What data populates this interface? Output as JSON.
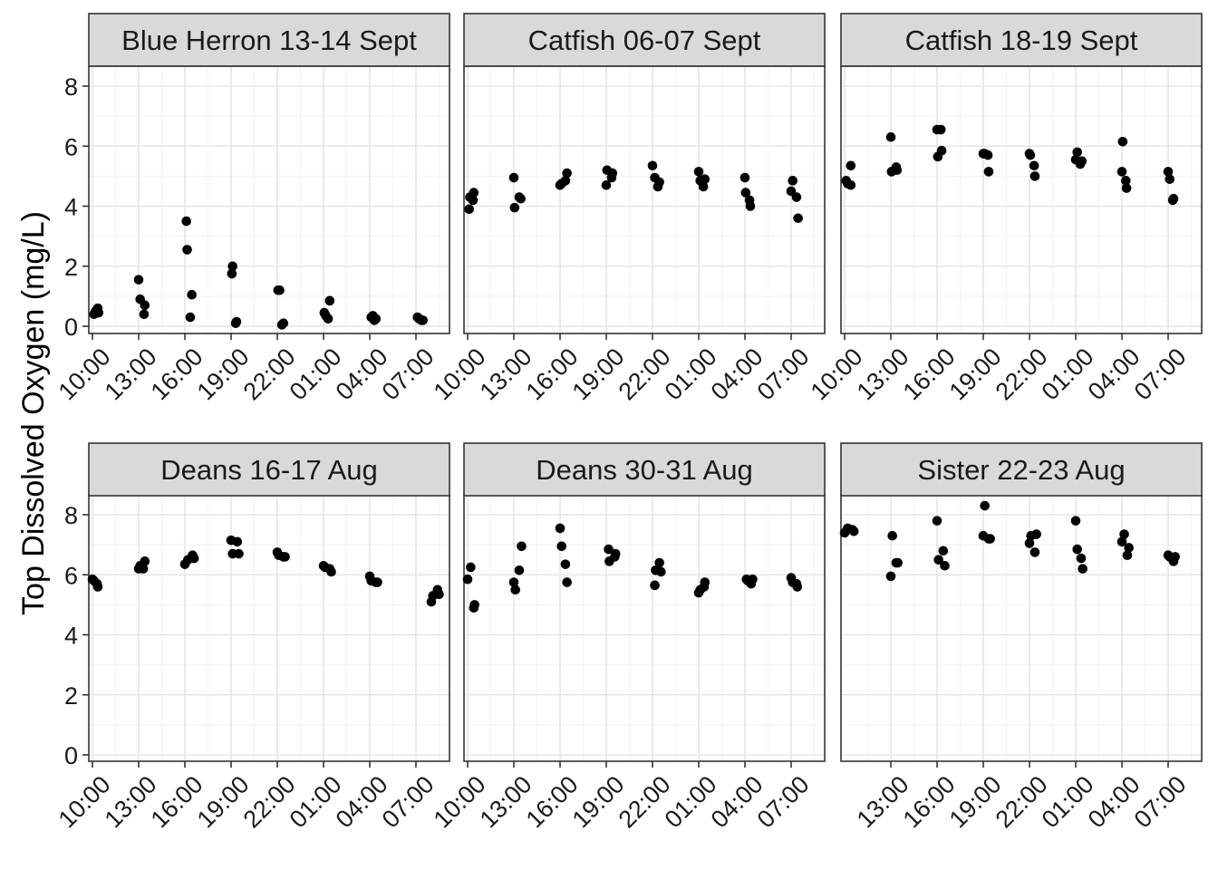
{
  "chart_data": {
    "type": "scatter",
    "title": "",
    "xlabel": "",
    "ylabel": "Top Dissolved Oxygen (mg/L)",
    "ylim": [
      0,
      8
    ],
    "yticks": [
      "0",
      "2",
      "4",
      "6",
      "8"
    ],
    "xtick_labels": [
      "10:00",
      "13:00",
      "16:00",
      "19:00",
      "22:00",
      "01:00",
      "04:00",
      "07:00"
    ],
    "x_units": "hours since 10:00",
    "grid": true,
    "point_color": "#000000",
    "panels": [
      {
        "title": "Blue Herron 13-14 Sept",
        "x_ticks": [
          "10:00",
          "13:00",
          "16:00",
          "19:00",
          "22:00",
          "01:00",
          "04:00",
          "07:00"
        ],
        "points": [
          [
            0.1,
            0.4
          ],
          [
            0.2,
            0.5
          ],
          [
            0.35,
            0.6
          ],
          [
            0.4,
            0.45
          ],
          [
            3.0,
            1.55
          ],
          [
            3.1,
            0.9
          ],
          [
            3.35,
            0.4
          ],
          [
            3.4,
            0.7
          ],
          [
            6.1,
            3.5
          ],
          [
            6.15,
            2.55
          ],
          [
            6.35,
            0.3
          ],
          [
            6.45,
            1.05
          ],
          [
            9.05,
            1.75
          ],
          [
            9.1,
            2.0
          ],
          [
            9.3,
            0.1
          ],
          [
            9.35,
            0.15
          ],
          [
            12.05,
            1.2
          ],
          [
            12.15,
            1.2
          ],
          [
            12.3,
            0.05
          ],
          [
            12.4,
            0.1
          ],
          [
            15.05,
            0.45
          ],
          [
            15.15,
            0.35
          ],
          [
            15.3,
            0.25
          ],
          [
            15.4,
            0.85
          ],
          [
            18.1,
            0.3
          ],
          [
            18.2,
            0.35
          ],
          [
            18.3,
            0.2
          ],
          [
            18.4,
            0.25
          ],
          [
            21.1,
            0.3
          ],
          [
            21.2,
            0.25
          ],
          [
            21.35,
            0.2
          ],
          [
            21.45,
            0.2
          ]
        ]
      },
      {
        "title": "Catfish 06-07 Sept",
        "x_ticks": [
          "10:00",
          "13:00",
          "16:00",
          "19:00",
          "22:00",
          "01:00",
          "04:00",
          "07:00"
        ],
        "points": [
          [
            0.1,
            3.9
          ],
          [
            0.15,
            4.3
          ],
          [
            0.35,
            4.2
          ],
          [
            0.4,
            4.45
          ],
          [
            3.0,
            4.95
          ],
          [
            3.05,
            3.95
          ],
          [
            3.35,
            4.3
          ],
          [
            3.45,
            4.25
          ],
          [
            6.0,
            4.7
          ],
          [
            6.1,
            4.75
          ],
          [
            6.35,
            4.85
          ],
          [
            6.45,
            5.1
          ],
          [
            9.0,
            4.7
          ],
          [
            9.05,
            5.2
          ],
          [
            9.35,
            4.95
          ],
          [
            9.4,
            5.1
          ],
          [
            12.0,
            5.35
          ],
          [
            12.15,
            4.95
          ],
          [
            12.35,
            4.65
          ],
          [
            12.45,
            4.8
          ],
          [
            15.0,
            5.15
          ],
          [
            15.1,
            4.85
          ],
          [
            15.3,
            4.65
          ],
          [
            15.4,
            4.9
          ],
          [
            18.0,
            4.95
          ],
          [
            18.05,
            4.45
          ],
          [
            18.35,
            4.0
          ],
          [
            18.3,
            4.2
          ],
          [
            21.0,
            4.5
          ],
          [
            21.1,
            4.85
          ],
          [
            21.35,
            4.3
          ],
          [
            21.45,
            3.6
          ]
        ]
      },
      {
        "title": "Catfish 18-19 Sept",
        "x_ticks": [
          "10:00",
          "13:00",
          "16:00",
          "19:00",
          "22:00",
          "01:00",
          "04:00",
          "07:00"
        ],
        "points": [
          [
            0.1,
            4.85
          ],
          [
            0.2,
            4.75
          ],
          [
            0.4,
            4.7
          ],
          [
            0.4,
            5.35
          ],
          [
            3.0,
            6.3
          ],
          [
            3.05,
            5.15
          ],
          [
            3.35,
            5.3
          ],
          [
            3.4,
            5.2
          ],
          [
            6.0,
            6.55
          ],
          [
            6.05,
            5.65
          ],
          [
            6.25,
            6.55
          ],
          [
            6.3,
            5.85
          ],
          [
            9.0,
            5.75
          ],
          [
            9.1,
            5.75
          ],
          [
            9.3,
            5.7
          ],
          [
            9.35,
            5.15
          ],
          [
            12.0,
            5.75
          ],
          [
            12.05,
            5.7
          ],
          [
            12.3,
            5.35
          ],
          [
            12.35,
            5.0
          ],
          [
            15.0,
            5.55
          ],
          [
            15.1,
            5.8
          ],
          [
            15.3,
            5.4
          ],
          [
            15.4,
            5.5
          ],
          [
            18.0,
            5.15
          ],
          [
            18.05,
            6.15
          ],
          [
            18.25,
            4.85
          ],
          [
            18.3,
            4.6
          ],
          [
            21.0,
            5.15
          ],
          [
            21.1,
            4.9
          ],
          [
            21.35,
            4.25
          ],
          [
            21.3,
            4.2
          ]
        ]
      },
      {
        "title": "Deans 16-17 Aug",
        "x_ticks": [
          "10:00",
          "13:00",
          "16:00",
          "19:00",
          "22:00",
          "01:00",
          "04:00",
          "07:00"
        ],
        "points": [
          [
            0.0,
            5.85
          ],
          [
            0.1,
            5.8
          ],
          [
            0.3,
            5.7
          ],
          [
            0.35,
            5.6
          ],
          [
            3.0,
            6.2
          ],
          [
            3.1,
            6.3
          ],
          [
            3.4,
            6.45
          ],
          [
            3.3,
            6.2
          ],
          [
            6.0,
            6.35
          ],
          [
            6.2,
            6.5
          ],
          [
            6.5,
            6.65
          ],
          [
            6.6,
            6.55
          ],
          [
            9.0,
            7.15
          ],
          [
            9.1,
            6.7
          ],
          [
            9.4,
            7.1
          ],
          [
            9.5,
            6.7
          ],
          [
            12.0,
            6.75
          ],
          [
            12.1,
            6.65
          ],
          [
            12.4,
            6.6
          ],
          [
            12.5,
            6.6
          ],
          [
            15.0,
            6.3
          ],
          [
            15.1,
            6.25
          ],
          [
            15.4,
            6.2
          ],
          [
            15.5,
            6.1
          ],
          [
            18.0,
            5.95
          ],
          [
            18.1,
            5.8
          ],
          [
            18.4,
            5.75
          ],
          [
            18.5,
            5.75
          ],
          [
            22.0,
            5.1
          ],
          [
            22.1,
            5.3
          ],
          [
            22.4,
            5.5
          ],
          [
            22.5,
            5.35
          ]
        ]
      },
      {
        "title": "Deans 30-31 Aug",
        "x_ticks": [
          "10:00",
          "13:00",
          "16:00",
          "19:00",
          "22:00",
          "01:00",
          "04:00",
          "07:00"
        ],
        "points": [
          [
            0.0,
            5.85
          ],
          [
            0.2,
            6.25
          ],
          [
            0.4,
            4.9
          ],
          [
            0.45,
            5.0
          ],
          [
            3.0,
            5.75
          ],
          [
            3.1,
            5.5
          ],
          [
            3.35,
            6.15
          ],
          [
            3.5,
            6.95
          ],
          [
            6.0,
            7.55
          ],
          [
            6.1,
            6.95
          ],
          [
            6.35,
            6.35
          ],
          [
            6.45,
            5.75
          ],
          [
            9.15,
            6.85
          ],
          [
            9.2,
            6.45
          ],
          [
            9.55,
            6.6
          ],
          [
            9.6,
            6.7
          ],
          [
            12.15,
            5.65
          ],
          [
            12.2,
            6.15
          ],
          [
            12.45,
            6.4
          ],
          [
            12.55,
            6.1
          ],
          [
            15.0,
            5.4
          ],
          [
            15.1,
            5.5
          ],
          [
            15.35,
            5.6
          ],
          [
            15.4,
            5.75
          ],
          [
            18.1,
            5.85
          ],
          [
            18.2,
            5.8
          ],
          [
            18.4,
            5.7
          ],
          [
            18.5,
            5.85
          ],
          [
            21.0,
            5.9
          ],
          [
            21.1,
            5.75
          ],
          [
            21.35,
            5.7
          ],
          [
            21.4,
            5.6
          ]
        ]
      },
      {
        "title": "Sister 22-23 Aug",
        "x_ticks": [
          "13:00",
          "16:00",
          "19:00",
          "22:00",
          "01:00",
          "04:00",
          "07:00"
        ],
        "points": [
          [
            0.0,
            7.4
          ],
          [
            0.2,
            7.55
          ],
          [
            0.5,
            7.5
          ],
          [
            0.6,
            7.45
          ],
          [
            3.0,
            5.95
          ],
          [
            3.1,
            7.3
          ],
          [
            3.35,
            6.4
          ],
          [
            3.45,
            6.4
          ],
          [
            6.0,
            7.8
          ],
          [
            6.1,
            6.5
          ],
          [
            6.4,
            6.8
          ],
          [
            6.5,
            6.3
          ],
          [
            9.0,
            7.3
          ],
          [
            9.1,
            8.3
          ],
          [
            9.35,
            7.2
          ],
          [
            9.45,
            7.2
          ],
          [
            12.0,
            7.05
          ],
          [
            12.1,
            7.3
          ],
          [
            12.35,
            6.75
          ],
          [
            12.45,
            7.35
          ],
          [
            15.0,
            7.8
          ],
          [
            15.1,
            6.85
          ],
          [
            15.35,
            6.55
          ],
          [
            15.45,
            6.2
          ],
          [
            18.0,
            7.1
          ],
          [
            18.15,
            7.35
          ],
          [
            18.35,
            6.65
          ],
          [
            18.45,
            6.9
          ],
          [
            21.0,
            6.65
          ],
          [
            21.1,
            6.6
          ],
          [
            21.35,
            6.45
          ],
          [
            21.45,
            6.6
          ]
        ]
      }
    ]
  }
}
